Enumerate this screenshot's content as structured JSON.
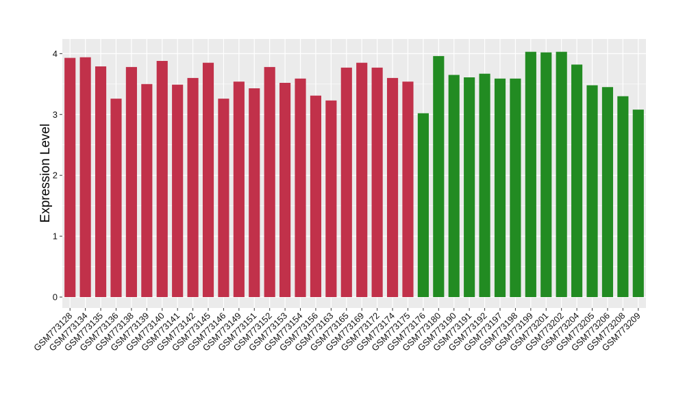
{
  "chart_data": {
    "type": "bar",
    "title": "",
    "xlabel": "",
    "ylabel": "Expression Level",
    "ylim": [
      -0.18,
      4.24
    ],
    "yticks": [
      0,
      1,
      2,
      3,
      4
    ],
    "grid": true,
    "legend": "none",
    "categories": [
      "GSM773128",
      "GSM773134",
      "GSM773135",
      "GSM773136",
      "GSM773138",
      "GSM773139",
      "GSM773140",
      "GSM773141",
      "GSM773142",
      "GSM773145",
      "GSM773146",
      "GSM773149",
      "GSM773151",
      "GSM773152",
      "GSM773153",
      "GSM773154",
      "GSM773156",
      "GSM773163",
      "GSM773165",
      "GSM773169",
      "GSM773172",
      "GSM773174",
      "GSM773175",
      "GSM773176",
      "GSM773180",
      "GSM773190",
      "GSM773191",
      "GSM773192",
      "GSM773197",
      "GSM773198",
      "GSM773199",
      "GSM773201",
      "GSM773202",
      "GSM773204",
      "GSM773205",
      "GSM773206",
      "GSM773208",
      "GSM773209"
    ],
    "values": [
      3.93,
      3.94,
      3.79,
      3.26,
      3.78,
      3.5,
      3.88,
      3.49,
      3.6,
      3.85,
      3.26,
      3.54,
      3.43,
      3.78,
      3.52,
      3.59,
      3.31,
      3.23,
      3.77,
      3.85,
      3.77,
      3.6,
      3.54,
      3.02,
      3.96,
      3.65,
      3.61,
      3.67,
      3.59,
      3.59,
      4.03,
      4.02,
      4.03,
      3.82,
      3.48,
      3.45,
      3.3,
      3.08
    ],
    "groups": [
      "red",
      "red",
      "red",
      "red",
      "red",
      "red",
      "red",
      "red",
      "red",
      "red",
      "red",
      "red",
      "red",
      "red",
      "red",
      "red",
      "red",
      "red",
      "red",
      "red",
      "red",
      "red",
      "red",
      "green",
      "green",
      "green",
      "green",
      "green",
      "green",
      "green",
      "green",
      "green",
      "green",
      "green",
      "green",
      "green",
      "green",
      "green"
    ],
    "colors": {
      "red": "#c1314a",
      "green": "#228b22",
      "panel": "#ebebeb",
      "grid": "#ffffff"
    }
  }
}
